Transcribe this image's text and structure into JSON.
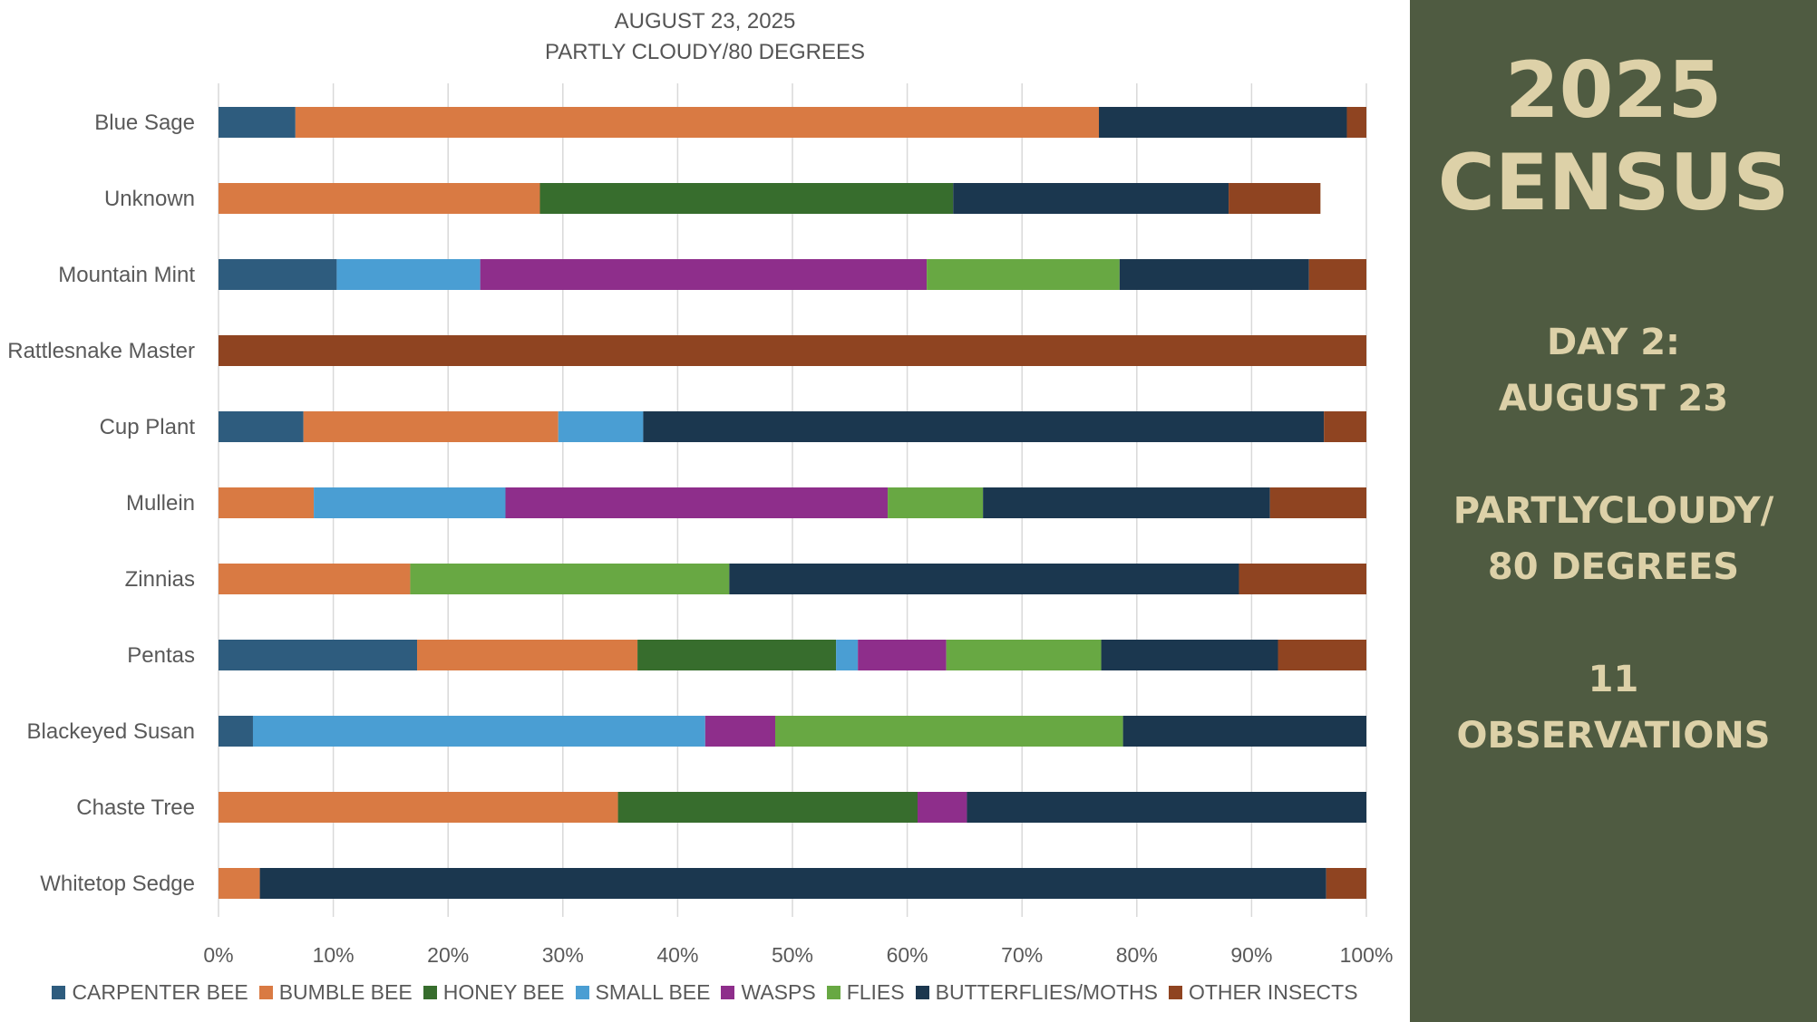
{
  "colors": {
    "panel_bg": "#4f5b41",
    "panel_text": "#ddd1a8",
    "grid": "#d9d9d9",
    "axis_text": "#595959"
  },
  "chart_data": {
    "type": "bar",
    "orientation": "horizontal",
    "stacked": "100%",
    "title": "AUGUST 23, 2025",
    "subtitle": "PARTLY CLOUDY/80 DEGREES",
    "xlim": [
      0,
      100
    ],
    "x_ticks": [
      "0%",
      "10%",
      "20%",
      "30%",
      "40%",
      "50%",
      "60%",
      "70%",
      "80%",
      "90%",
      "100%"
    ],
    "grid": true,
    "legend_position": "bottom",
    "categories": [
      "Blue Sage",
      "Unknown",
      "Mountain Mint",
      "Rattlesnake Master",
      "Cup Plant",
      "Mullein",
      "Zinnias",
      "Pentas",
      "Blackeyed Susan",
      "Chaste Tree",
      "Whitetop Sedge"
    ],
    "series": [
      {
        "name": "CARPENTER BEE",
        "color": "#2e5c7e",
        "values": [
          6.7,
          0,
          10.3,
          0,
          7.4,
          0,
          0,
          17.3,
          3.0,
          0,
          0
        ]
      },
      {
        "name": "BUMBLE BEE",
        "color": "#d97a43",
        "values": [
          70.0,
          28.0,
          0,
          0,
          22.2,
          8.3,
          16.7,
          19.2,
          0,
          34.8,
          3.6
        ]
      },
      {
        "name": "HONEY BEE",
        "color": "#376d2d",
        "values": [
          0,
          36.0,
          0,
          0,
          0,
          0,
          0,
          17.3,
          0,
          26.1,
          0
        ]
      },
      {
        "name": "SMALL BEE",
        "color": "#4a9ed3",
        "values": [
          0,
          0,
          12.5,
          0,
          7.4,
          16.7,
          0,
          1.9,
          39.4,
          0,
          0
        ]
      },
      {
        "name": "WASPS",
        "color": "#8e2e8b",
        "values": [
          0,
          0,
          38.9,
          0,
          0,
          33.3,
          0,
          7.7,
          6.1,
          4.3,
          0
        ]
      },
      {
        "name": "FLIES",
        "color": "#68a843",
        "values": [
          0,
          0,
          16.8,
          0,
          0,
          8.3,
          27.8,
          13.5,
          30.3,
          0,
          0
        ]
      },
      {
        "name": "BUTTERFLIES/MOTHS",
        "color": "#1b374f",
        "values": [
          21.6,
          24.0,
          16.5,
          0,
          59.3,
          25.0,
          44.4,
          15.4,
          21.2,
          34.8,
          92.9
        ]
      },
      {
        "name": "OTHER INSECTS",
        "color": "#8f4421",
        "values": [
          1.7,
          8.0,
          5.0,
          100,
          3.7,
          8.4,
          11.1,
          7.7,
          0,
          0,
          3.5
        ]
      }
    ]
  },
  "panel": {
    "title_line1": "2025",
    "title_line2": "CENSUS",
    "day_line1": "DAY 2:",
    "day_line2": "AUGUST 23",
    "weather_line1": "PARTLYCLOUDY/",
    "weather_line2": "80 DEGREES",
    "obs_line1": "11",
    "obs_line2": "OBSERVATIONS"
  }
}
